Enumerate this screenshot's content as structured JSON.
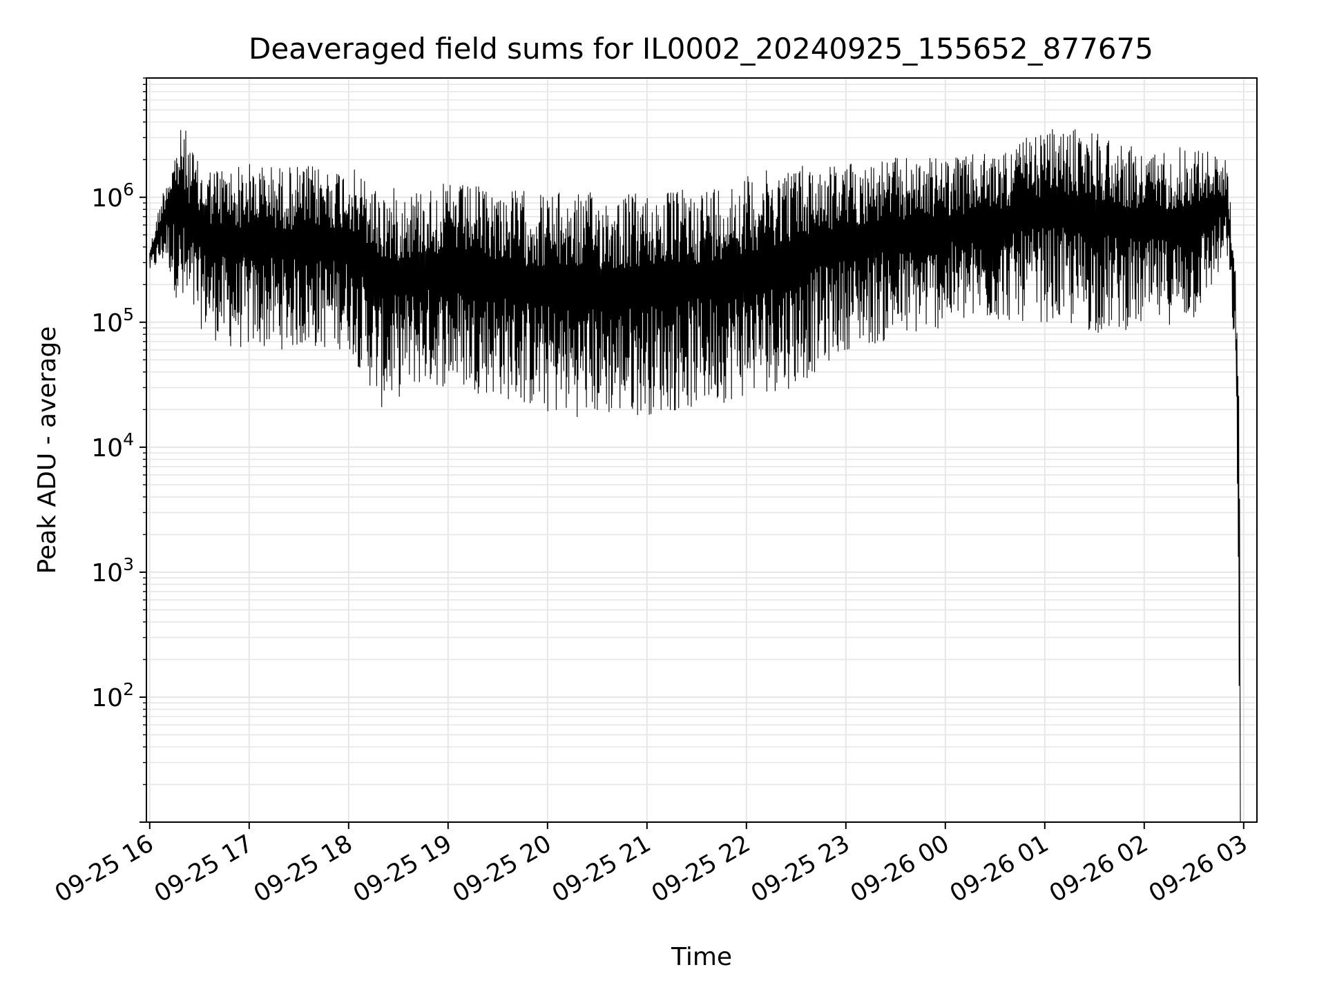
{
  "chart_data": {
    "type": "line",
    "title": "Deaveraged field sums for IL0002_20240925_155652_877675",
    "xlabel": "Time",
    "ylabel": "Peak ADU - average",
    "y_scale": "log",
    "grid": true,
    "legend": "none",
    "line_color": "#000000",
    "grid_color": "#e6e6e6",
    "xlim": [
      "2024-09-25 15:58",
      "2024-09-26 03:08"
    ],
    "ylim": [
      10,
      9000000
    ],
    "x_ticks": [
      "2024-09-25 16:00",
      "2024-09-25 17:00",
      "2024-09-25 18:00",
      "2024-09-25 19:00",
      "2024-09-25 20:00",
      "2024-09-25 21:00",
      "2024-09-25 22:00",
      "2024-09-25 23:00",
      "2024-09-26 00:00",
      "2024-09-26 01:00",
      "2024-09-26 02:00",
      "2024-09-26 03:00"
    ],
    "x_tick_labels": [
      "09-25 16",
      "09-25 17",
      "09-25 18",
      "09-25 19",
      "09-25 20",
      "09-25 21",
      "09-25 22",
      "09-25 23",
      "09-26 00",
      "09-26 01",
      "09-26 02",
      "09-26 03"
    ],
    "y_ticks": [
      100,
      1000,
      10000,
      100000,
      1000000
    ],
    "y_tick_base": "10",
    "y_tick_exponents": [
      "2",
      "3",
      "4",
      "5",
      "6"
    ],
    "series": [
      {
        "x": [
          "2024-09-25 16:00",
          "2024-09-25 16:10",
          "2024-09-25 16:20",
          "2024-09-25 16:30",
          "2024-09-25 16:40",
          "2024-09-25 16:50",
          "2024-09-25 17:00",
          "2024-09-25 17:20",
          "2024-09-25 17:40",
          "2024-09-25 18:00",
          "2024-09-25 18:20",
          "2024-09-25 18:40",
          "2024-09-25 19:00",
          "2024-09-25 19:30",
          "2024-09-25 20:00",
          "2024-09-25 20:30",
          "2024-09-25 21:00",
          "2024-09-25 21:30",
          "2024-09-25 22:00",
          "2024-09-25 22:30",
          "2024-09-25 23:00",
          "2024-09-25 23:30",
          "2024-09-26 00:00",
          "2024-09-26 00:30",
          "2024-09-26 01:00",
          "2024-09-26 01:30",
          "2024-09-26 02:00",
          "2024-09-26 02:30",
          "2024-09-26 02:50",
          "2024-09-26 02:55",
          "2024-09-26 02:58"
        ],
        "y_max": [
          400000,
          1500000,
          4000000,
          1800000,
          1800000,
          1800000,
          1900000,
          1800000,
          1800000,
          1800000,
          1200000,
          1200000,
          1300000,
          1200000,
          1100000,
          1100000,
          1100000,
          1200000,
          1500000,
          1900000,
          1900000,
          2100000,
          2100000,
          2300000,
          3500000,
          3600000,
          2300000,
          2700000,
          2000000,
          300000,
          9000
        ],
        "y_min": [
          250000,
          300000,
          100000,
          90000,
          70000,
          60000,
          60000,
          60000,
          60000,
          60000,
          20000,
          30000,
          30000,
          25000,
          18000,
          17000,
          18000,
          20000,
          25000,
          30000,
          60000,
          70000,
          90000,
          100000,
          100000,
          80000,
          90000,
          100000,
          300000,
          50000,
          10
        ]
      }
    ]
  }
}
